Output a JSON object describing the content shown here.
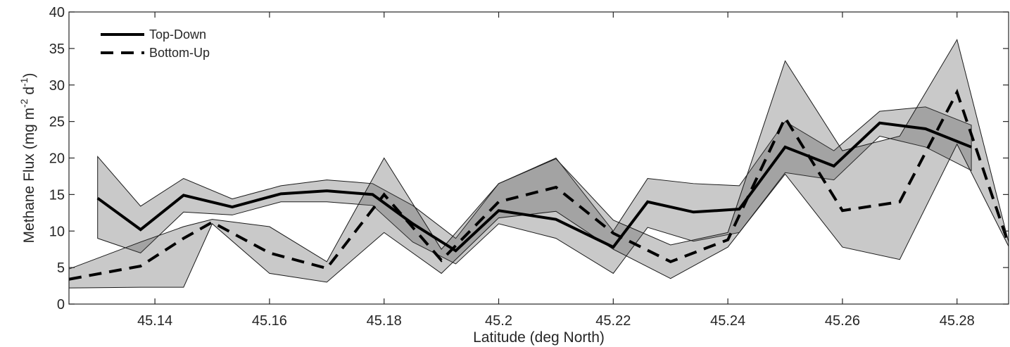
{
  "chart_data": {
    "type": "line",
    "xlabel": "Latitude (deg North)",
    "ylabel": {
      "prefix": "Methane Flux (mg m",
      "sup1": "-2",
      "mid": " d",
      "sup2": "-1",
      "suffix": ")"
    },
    "xlim": [
      45.125,
      45.289
    ],
    "ylim": [
      0,
      40
    ],
    "xticks": [
      "45.14",
      "45.16",
      "45.18",
      "45.2",
      "45.22",
      "45.24",
      "45.26",
      "45.28"
    ],
    "yticks": [
      "0",
      "5",
      "10",
      "15",
      "20",
      "25",
      "30",
      "35",
      "40"
    ],
    "grid": false,
    "legend_position": "top-left",
    "series": [
      {
        "name": "Top-Down",
        "style": "solid",
        "color": "#000000",
        "x": [
          45.13,
          45.1375,
          45.145,
          45.1535,
          45.162,
          45.17,
          45.178,
          45.185,
          45.1925,
          45.2,
          45.21,
          45.22,
          45.226,
          45.234,
          45.242,
          45.25,
          45.2585,
          45.2665,
          45.2745,
          45.2825
        ],
        "y": [
          14.5,
          10.2,
          14.9,
          13.3,
          15.1,
          15.5,
          15.0,
          11.0,
          7.3,
          12.8,
          11.6,
          7.8,
          14.0,
          12.6,
          13.0,
          21.5,
          18.9,
          24.8,
          24.0,
          21.5
        ],
        "band_upper": [
          20.2,
          13.4,
          17.2,
          14.4,
          16.2,
          17.0,
          16.5,
          13.5,
          9.0,
          16.5,
          20.0,
          10.0,
          17.2,
          16.5,
          16.2,
          25.0,
          21.0,
          26.4,
          27.0,
          24.5
        ],
        "band_lower": [
          9.0,
          7.0,
          12.6,
          12.2,
          14.0,
          14.0,
          13.5,
          8.5,
          5.5,
          11.0,
          9.0,
          4.2,
          10.5,
          8.6,
          9.8,
          18.0,
          17.0,
          23.0,
          21.5,
          18.3
        ]
      },
      {
        "name": "Bottom-Up",
        "style": "dashed",
        "color": "#000000",
        "x": [
          45.125,
          45.1375,
          45.145,
          45.15,
          45.16,
          45.17,
          45.18,
          45.19,
          45.2,
          45.21,
          45.22,
          45.23,
          45.24,
          45.25,
          45.26,
          45.27,
          45.28,
          45.289
        ],
        "y": [
          3.4,
          5.2,
          9.0,
          11.2,
          7.0,
          4.9,
          15.0,
          6.0,
          14.0,
          16.0,
          9.7,
          5.8,
          8.8,
          25.5,
          12.8,
          14.0,
          29.0,
          8.2
        ],
        "band_upper": [
          4.8,
          8.5,
          10.6,
          11.6,
          10.6,
          5.8,
          20.0,
          7.5,
          16.5,
          19.9,
          11.5,
          8.1,
          9.8,
          33.3,
          21.0,
          23.0,
          36.2,
          8.5
        ],
        "band_lower": [
          2.2,
          2.3,
          2.3,
          11.0,
          4.2,
          3.0,
          9.8,
          4.2,
          11.8,
          12.7,
          7.5,
          3.5,
          7.8,
          17.8,
          7.8,
          6.1,
          21.9,
          7.9
        ]
      }
    ]
  }
}
